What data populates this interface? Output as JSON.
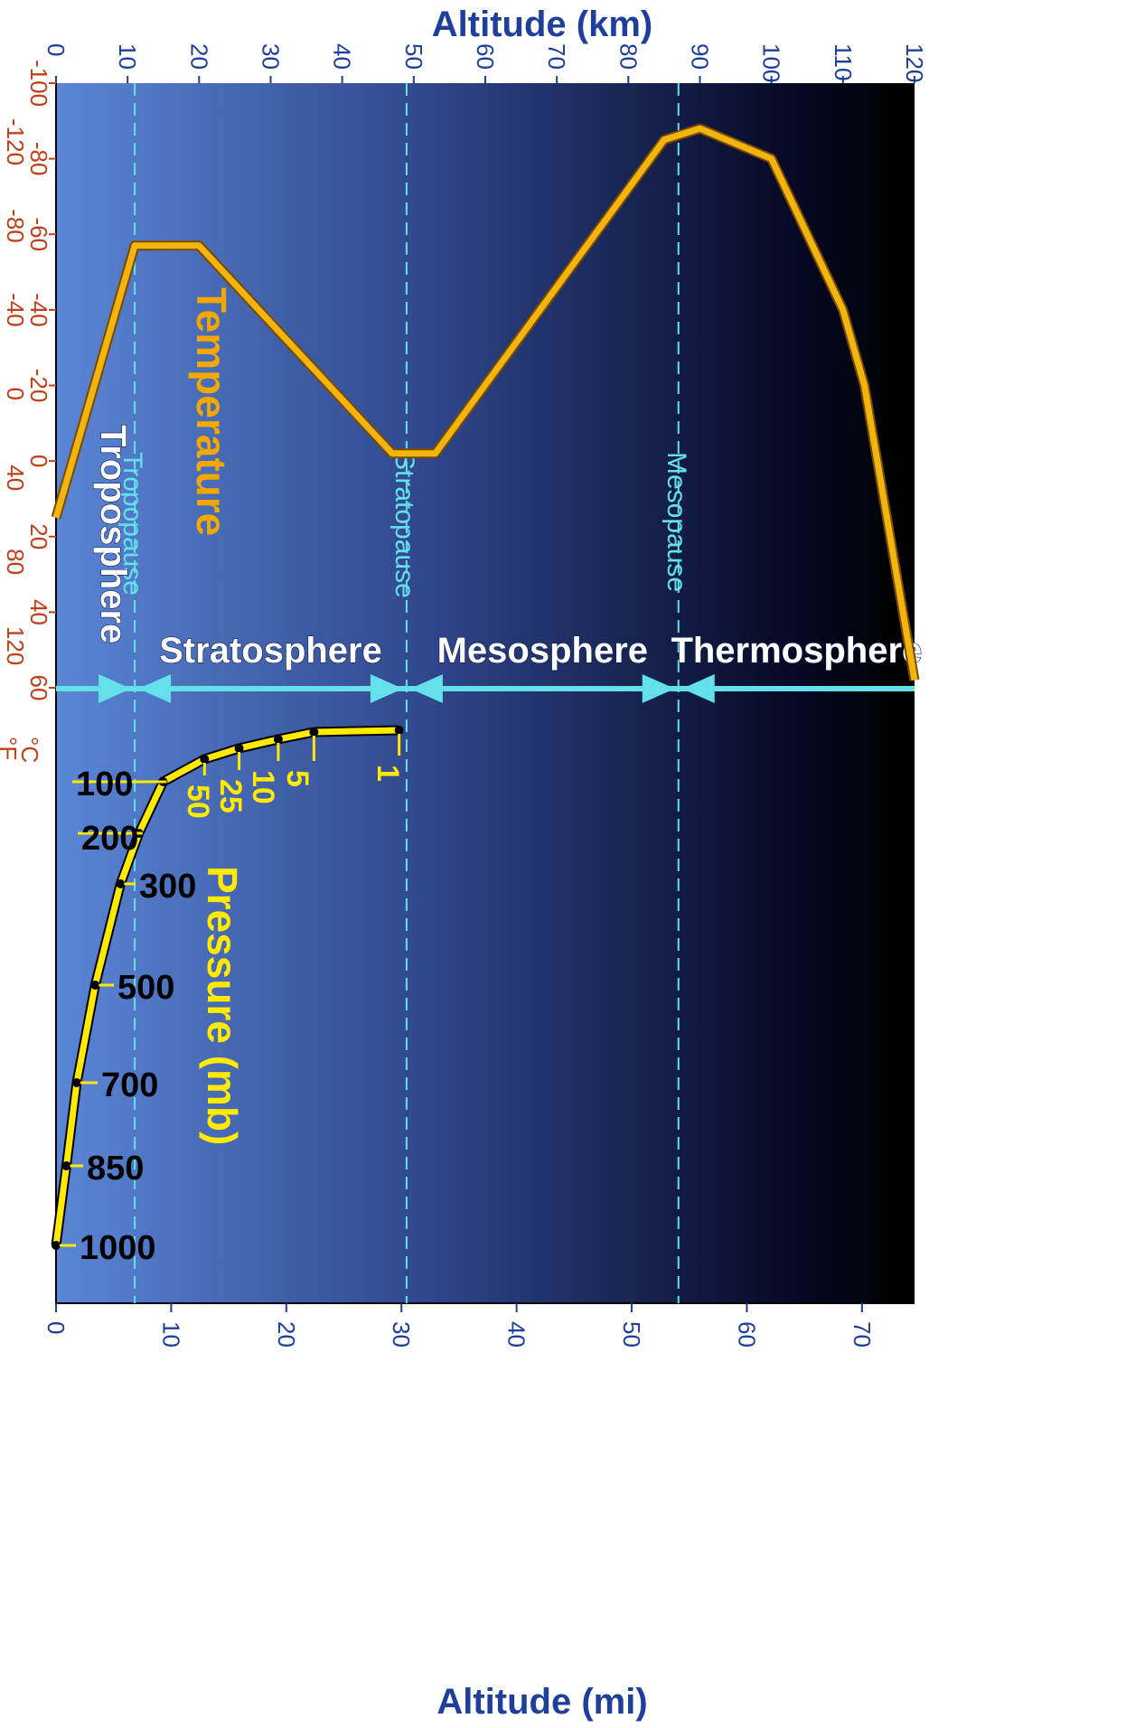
{
  "chart_data": {
    "type": "line",
    "title": "",
    "orientation": "rotated 90° clockwise (altitude axis runs horizontally across the image)",
    "axes": {
      "altitude_km": {
        "label": "Altitude (km)",
        "position": "top",
        "range": [
          0,
          120
        ],
        "ticks": [
          "0",
          "10",
          "20",
          "30",
          "40",
          "50",
          "60",
          "70",
          "80",
          "90",
          "100",
          "110",
          "120"
        ]
      },
      "altitude_mi": {
        "label": "Altitude (mi)",
        "position": "bottom",
        "range": [
          0,
          74.6
        ],
        "ticks": [
          "0",
          "10",
          "20",
          "30",
          "40",
          "50",
          "60",
          "70"
        ]
      },
      "temperature_c": {
        "unit": "°C",
        "range": [
          -100,
          60
        ],
        "ticks": [
          "-100",
          "-80",
          "-60",
          "-40",
          "-20",
          "0",
          "20",
          "40",
          "60"
        ]
      },
      "temperature_f": {
        "unit": "°F",
        "range": [
          -148,
          140
        ],
        "ticks": [
          "-120",
          "-80",
          "-40",
          "0",
          "40",
          "80",
          "120"
        ]
      }
    },
    "series": [
      {
        "name": "Temperature",
        "color": "#f2b40e",
        "x_unit": "km",
        "y_unit": "°C",
        "points": [
          [
            0,
            15
          ],
          [
            11,
            -57
          ],
          [
            15,
            -57
          ],
          [
            20,
            -57
          ],
          [
            47,
            -2
          ],
          [
            53,
            -2
          ],
          [
            85,
            -85
          ],
          [
            90,
            -88
          ],
          [
            100,
            -80
          ],
          [
            110,
            -40
          ],
          [
            113,
            -20
          ],
          [
            120,
            58
          ]
        ]
      },
      {
        "name": "Pressure (mb)",
        "color": "#ffea00",
        "x_unit": "mi",
        "points": [
          {
            "x": 0,
            "value": "1000"
          },
          {
            "x": 0.9,
            "value": "850"
          },
          {
            "x": 1.8,
            "value": "700"
          },
          {
            "x": 3.4,
            "value": "500"
          },
          {
            "x": 5.6,
            "value": "300"
          },
          {
            "x": 7.2,
            "value": "200"
          },
          {
            "x": 9.3,
            "value": "100"
          },
          {
            "x": 12.9,
            "value": "50"
          },
          {
            "x": 15.9,
            "value": "25"
          },
          {
            "x": 19.3,
            "value": "10"
          },
          {
            "x": 22.4,
            "value": "5"
          },
          {
            "x": 29.8,
            "value": "1"
          }
        ]
      }
    ],
    "boundaries": [
      {
        "name": "Tropopause",
        "km": 11
      },
      {
        "name": "Stratopause",
        "km": 49
      },
      {
        "name": "Mesopause",
        "km": 87
      }
    ],
    "layers": [
      {
        "name": "Troposphere",
        "from_km": 0,
        "to_km": 11
      },
      {
        "name": "Stratosphere",
        "from_km": 11,
        "to_km": 49
      },
      {
        "name": "Mesosphere",
        "from_km": 49,
        "to_km": 87
      },
      {
        "name": "Thermosphere",
        "from_km": 87,
        "to_km": 120
      }
    ],
    "colors": {
      "background_low": "#5a86d6",
      "background_mid": "#2e4488",
      "background_high": "#060a26",
      "boundary_line": "#63e0ea",
      "temperature_line": "#f2b40e",
      "pressure_line": "#ffea00",
      "axis_text": "#1e3f9c",
      "temp_axis_text": "#c0401a"
    }
  }
}
